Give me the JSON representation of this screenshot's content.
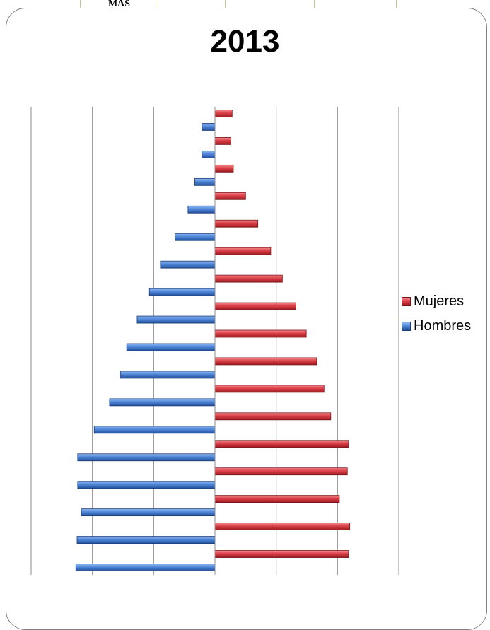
{
  "top_table": {
    "cells": [
      "MAS",
      "",
      "",
      ""
    ]
  },
  "chart_data": {
    "type": "bar",
    "orientation": "horizontal",
    "title": "2013",
    "xlim": [
      -3000,
      3000
    ],
    "grid": true,
    "legend_position": "right",
    "series": [
      {
        "name": "Mujeres",
        "color": "#d9363e",
        "values": [
          2180,
          2200,
          2030,
          2160,
          2180,
          1890,
          1780,
          1660,
          1490,
          1320,
          1100,
          910,
          700,
          500,
          300,
          260,
          280
        ]
      },
      {
        "name": "Hombres",
        "color": "#4a82d8",
        "values": [
          -2270,
          -2250,
          -2180,
          -2240,
          -2240,
          -1970,
          -1720,
          -1540,
          -1440,
          -1270,
          -1070,
          -890,
          -650,
          -440,
          -330,
          -210,
          -210
        ]
      }
    ]
  }
}
